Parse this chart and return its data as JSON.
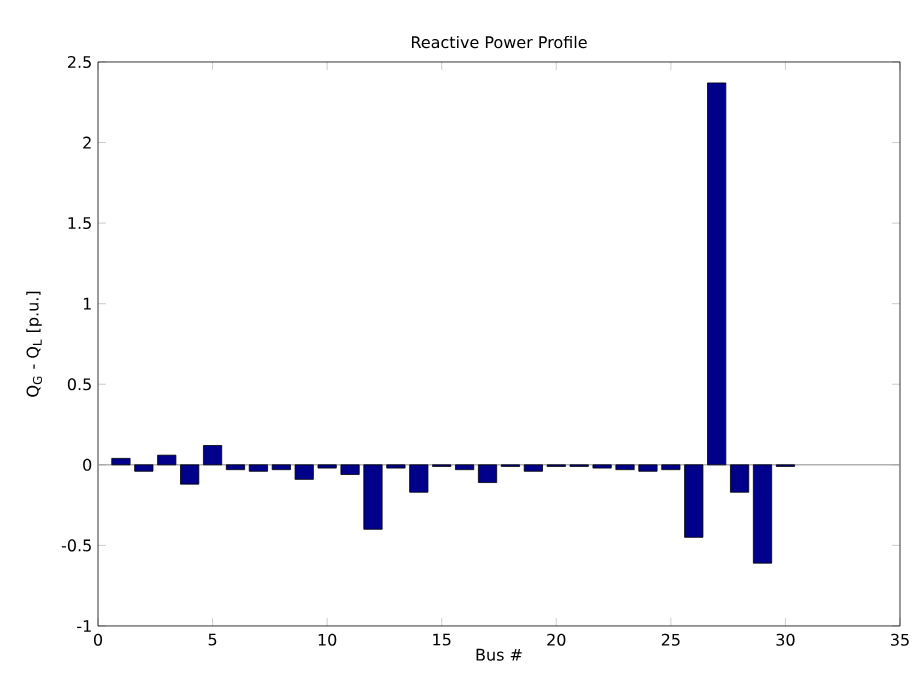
{
  "chart_data": {
    "type": "bar",
    "title": "Reactive Power Profile",
    "xlabel": "Bus #",
    "ylabel": "Q$_{G}$ - Q$_{L}$ [p.u.]",
    "x": [
      1,
      2,
      3,
      4,
      5,
      6,
      7,
      8,
      9,
      10,
      11,
      12,
      13,
      14,
      15,
      16,
      17,
      18,
      19,
      20,
      21,
      22,
      23,
      24,
      25,
      26,
      27,
      28,
      29,
      30
    ],
    "values": [
      0.04,
      -0.04,
      0.06,
      -0.12,
      0.12,
      -0.03,
      -0.04,
      -0.03,
      -0.09,
      -0.02,
      -0.06,
      -0.4,
      -0.02,
      -0.17,
      -0.01,
      -0.03,
      -0.11,
      -0.01,
      -0.04,
      -0.01,
      -0.01,
      -0.02,
      -0.03,
      -0.04,
      -0.03,
      -0.45,
      2.37,
      -0.17,
      -0.61,
      -0.01
    ],
    "color": "#00008b",
    "xlim": [
      0,
      35
    ],
    "xticks": [
      0,
      5,
      10,
      15,
      20,
      25,
      30,
      35
    ],
    "ylim": [
      -1,
      2.5
    ],
    "yticks": [
      -1,
      -0.5,
      0,
      0.5,
      1,
      1.5,
      2,
      2.5
    ],
    "ref_lines": [
      {
        "axis": "y",
        "value": 0,
        "color": "#999999"
      }
    ],
    "grid": false
  }
}
